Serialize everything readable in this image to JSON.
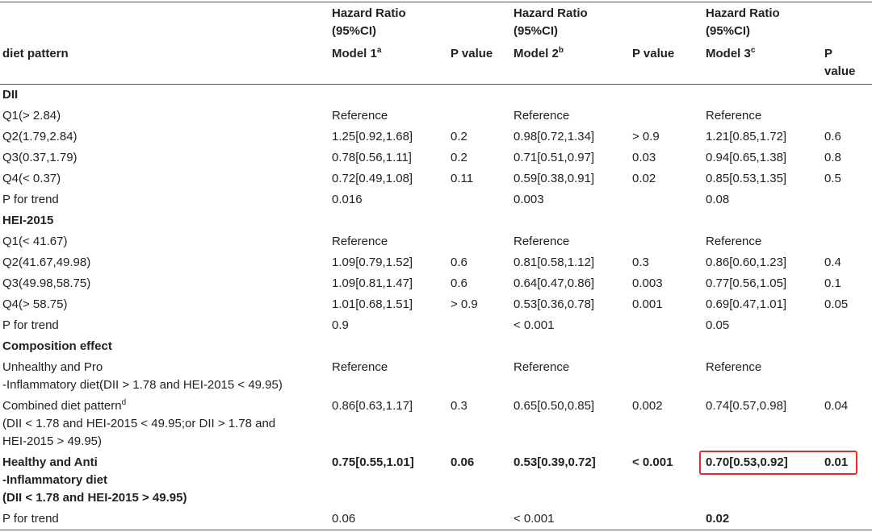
{
  "header": {
    "groups": [
      [
        "Hazard Ratio",
        "(95%CI)"
      ],
      [
        "Hazard Ratio",
        "(95%CI)"
      ],
      [
        "Hazard Ratio",
        "(95%CI)"
      ]
    ],
    "columns": [
      "diet pattern",
      {
        "text": "Model 1",
        "sup": "a"
      },
      "P value",
      {
        "text": "Model 2",
        "sup": "b"
      },
      "P value",
      {
        "text": "Model 3",
        "sup": "c"
      },
      "P value"
    ]
  },
  "table": {
    "rows": [
      {
        "cells": [
          "DII"
        ],
        "bold": true
      },
      {
        "cells": [
          "Q1(> 2.84)",
          "Reference",
          null,
          "Reference",
          null,
          "Reference",
          null
        ]
      },
      {
        "cells": [
          "Q2(1.79,2.84)",
          "1.25[0.92,1.68]",
          "0.2",
          "0.98[0.72,1.34]",
          "> 0.9",
          "1.21[0.85,1.72]",
          "0.6"
        ]
      },
      {
        "cells": [
          "Q3(0.37,1.79)",
          "0.78[0.56,1.11]",
          "0.2",
          "0.71[0.51,0.97]",
          "0.03",
          "0.94[0.65,1.38]",
          "0.8"
        ]
      },
      {
        "cells": [
          "Q4(< 0.37)",
          "0.72[0.49,1.08]",
          "0.11",
          "0.59[0.38,0.91]",
          "0.02",
          "0.85[0.53,1.35]",
          "0.5"
        ]
      },
      {
        "cells": [
          "P for trend",
          "0.016",
          null,
          "0.003",
          null,
          "0.08",
          null
        ]
      },
      {
        "cells": [
          "HEI-2015"
        ],
        "bold": true
      },
      {
        "cells": [
          "Q1(< 41.67)",
          "Reference",
          null,
          "Reference",
          null,
          "Reference",
          null
        ]
      },
      {
        "cells": [
          "Q2(41.67,49.98)",
          "1.09[0.79,1.52]",
          "0.6",
          "0.81[0.58,1.12]",
          "0.3",
          "0.86[0.60,1.23]",
          "0.4"
        ]
      },
      {
        "cells": [
          "Q3(49.98,58.75)",
          "1.09[0.81,1.47]",
          "0.6",
          "0.64[0.47,0.86]",
          "0.003",
          "0.77[0.56,1.05]",
          "0.1"
        ]
      },
      {
        "cells": [
          "Q4(> 58.75)",
          "1.01[0.68,1.51]",
          "> 0.9",
          "0.53[0.36,0.78]",
          "0.001",
          "0.69[0.47,1.01]",
          "0.05"
        ]
      },
      {
        "cells": [
          "P for trend",
          "0.9",
          null,
          "< 0.001",
          null,
          "0.05",
          null
        ]
      },
      {
        "cells": [
          "Composition effect"
        ],
        "bold": true
      },
      {
        "cells": [
          "Unhealthy and Pro\n-Inflammatory diet(DII > 1.78 and HEI-2015 < 49.95)",
          "Reference",
          null,
          "Reference",
          null,
          "Reference",
          null
        ]
      },
      {
        "cells": [
          {
            "text": "Combined diet pattern",
            "sup": "d",
            "after": "\n(DII < 1.78 and HEI-2015 < 49.95;or DII > 1.78 and\nHEI-2015 > 49.95)"
          },
          "0.86[0.63,1.17]",
          "0.3",
          "0.65[0.50,0.85]",
          "0.002",
          "0.74[0.57,0.98]",
          "0.04"
        ]
      },
      {
        "cells": [
          "Healthy and Anti\n-Inflammatory diet\n(DII < 1.78 and HEI-2015 > 49.95)",
          "0.75[0.55,1.01]",
          "0.06",
          "0.53[0.39,0.72]",
          "< 0.001",
          "0.70[0.53,0.92]",
          "0.01"
        ],
        "bold": true
      },
      {
        "cells": [
          "P for trend",
          "0.06",
          null,
          "< 0.001",
          null,
          "0.02",
          null
        ],
        "bold_cells": [
          5
        ]
      }
    ]
  }
}
